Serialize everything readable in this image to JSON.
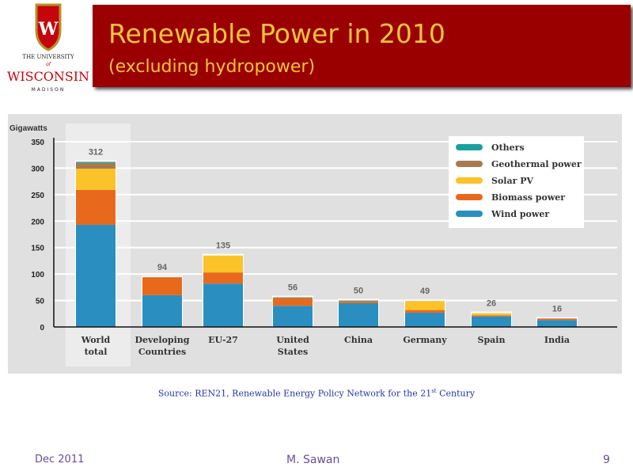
{
  "logo": {
    "line1": "THE UNIVERSITY",
    "line2": "of",
    "line3": "WISCONSIN",
    "line4": "MADISON",
    "crest_letter": "W"
  },
  "title": {
    "line1": "Renewable Power in 2010",
    "line2": "(excluding hydropower)"
  },
  "source": {
    "text": "Source: REN21, Renewable Energy Policy Network for the 21",
    "sup": "st",
    "tail": " Century"
  },
  "footer": {
    "date": "Dec 2011",
    "author": "M. Sawan",
    "page": "9"
  },
  "chart_data": {
    "type": "bar",
    "stacked": true,
    "ylabel": "Gigawatts",
    "ylim": [
      0,
      350
    ],
    "yticks": [
      0,
      50,
      100,
      150,
      200,
      250,
      300,
      350
    ],
    "grid": true,
    "legend_position": "top-right",
    "categories": [
      "World total",
      "Developing Countries",
      "EU-27",
      "United States",
      "China",
      "Germany",
      "Spain",
      "India"
    ],
    "category_lines": [
      [
        "World",
        "total"
      ],
      [
        "Developing",
        "Countries"
      ],
      [
        "EU-27"
      ],
      [
        "United",
        "States"
      ],
      [
        "China"
      ],
      [
        "Germany"
      ],
      [
        "Spain"
      ],
      [
        "India"
      ]
    ],
    "totals": [
      312,
      94,
      135,
      56,
      50,
      49,
      26,
      16
    ],
    "series": [
      {
        "name": "Wind power",
        "color": "#2a8fc0",
        "values": [
          193,
          60,
          82,
          40,
          45,
          27,
          20,
          13
        ]
      },
      {
        "name": "Biomass power",
        "color": "#e8691c",
        "values": [
          66,
          34,
          21,
          13,
          4,
          5,
          2,
          3
        ]
      },
      {
        "name": "Solar PV",
        "color": "#fcc22a",
        "values": [
          40,
          0,
          32,
          0,
          0,
          17,
          4,
          0
        ]
      },
      {
        "name": "Geothermal power",
        "color": "#a87a4e",
        "values": [
          11,
          0,
          0,
          3,
          0,
          0,
          0,
          0
        ]
      },
      {
        "name": "Others",
        "color": "#18a0a0",
        "values": [
          2,
          0,
          0,
          0,
          1,
          0,
          0,
          0
        ]
      }
    ]
  }
}
